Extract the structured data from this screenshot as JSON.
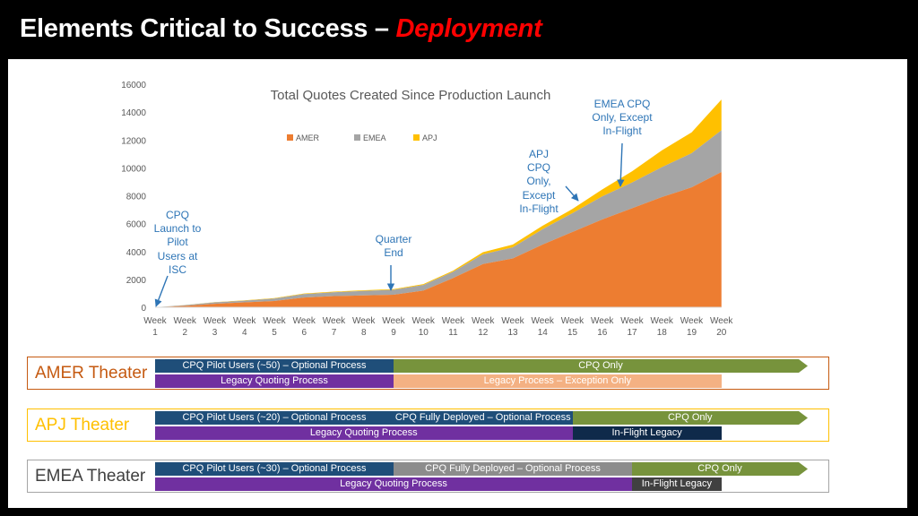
{
  "slide": {
    "title_main": "Elements Critical to Success – ",
    "title_accent": "Deployment"
  },
  "colors": {
    "background": "#000000",
    "panel": "#ffffff",
    "accent_red": "#ff0000",
    "amer": "#ed7d31",
    "emea": "#a5a5a5",
    "apj": "#ffc000",
    "annotation": "#2e75b6",
    "pilot": "#1f4e79",
    "legacy": "#7030a0",
    "cpq_only": "#77933c",
    "exception": "#f4b183",
    "emea_full": "#8c8c8c",
    "inflight": "#0f2a4a"
  },
  "chart_data": {
    "type": "area",
    "stacked": true,
    "title": "Total Quotes Created Since Production Launch",
    "categories": [
      "Week 1",
      "Week 2",
      "Week 3",
      "Week 4",
      "Week 5",
      "Week 6",
      "Week 7",
      "Week 8",
      "Week 9",
      "Week 10",
      "Week 11",
      "Week 12",
      "Week 13",
      "Week 14",
      "Week 15",
      "Week 16",
      "Week 17",
      "Week 18",
      "Week 19",
      "Week 20"
    ],
    "ylim": [
      0,
      16000
    ],
    "yticks": [
      "0",
      "2000",
      "4000",
      "6000",
      "8000",
      "10000",
      "12000",
      "14000",
      "16000"
    ],
    "legend": [
      "AMER",
      "EMEA",
      "APJ"
    ],
    "legend_position": "top",
    "grid": false,
    "series": [
      {
        "name": "AMER",
        "color": "#ed7d31",
        "values": [
          0,
          100,
          250,
          350,
          450,
          700,
          800,
          850,
          900,
          1200,
          2100,
          3100,
          3500,
          4500,
          5400,
          6300,
          7100,
          7900,
          8600,
          9700
        ]
      },
      {
        "name": "EMEA",
        "color": "#a5a5a5",
        "values": [
          0,
          50,
          100,
          120,
          180,
          250,
          280,
          320,
          350,
          400,
          450,
          700,
          800,
          1100,
          1350,
          1650,
          1850,
          2150,
          2450,
          3000
        ]
      },
      {
        "name": "APJ",
        "color": "#ffc000",
        "values": [
          0,
          10,
          20,
          25,
          30,
          40,
          45,
          50,
          50,
          60,
          80,
          150,
          200,
          250,
          300,
          500,
          800,
          1200,
          1500,
          2200
        ]
      }
    ],
    "annotations": [
      {
        "text": "CPQ\nLaunch to\nPilot\nUsers  at\nISC",
        "at_week": 1
      },
      {
        "text": "Quarter\nEnd",
        "at_week": 9
      },
      {
        "text": "APJ\nCPQ\nOnly,\nExcept\nIn-Flight",
        "at_week": 15
      },
      {
        "text": "EMEA CPQ\nOnly, Except\nIn-Flight",
        "at_week": 17
      }
    ]
  },
  "theaters": [
    {
      "name": "AMER Theater",
      "border": "#c55a11",
      "label_color": "#c55a11",
      "row1": [
        {
          "text": "CPQ Pilot Users (~50) – Optional Process",
          "color": "#1f4e79",
          "from_week": 1,
          "to_week": 9
        },
        {
          "text": "CPQ Only",
          "color": "#77933c",
          "from_week": 9,
          "to_week": 22,
          "arrow": true
        }
      ],
      "row2": [
        {
          "text": "Legacy Quoting Process",
          "color": "#7030a0",
          "from_week": 1,
          "to_week": 9
        },
        {
          "text": "Legacy Process – Exception Only",
          "color": "#f4b183",
          "from_week": 9,
          "to_week": 20
        }
      ]
    },
    {
      "name": "APJ Theater",
      "border": "#ffc000",
      "label_color": "#ffc000",
      "row1": [
        {
          "text": "CPQ Pilot Users (~20) – Optional Process",
          "color": "#1f4e79",
          "from_week": 1,
          "to_week": 9
        },
        {
          "text": "CPQ Fully Deployed – Optional Process",
          "color": "#1f4e79",
          "from_week": 9,
          "to_week": 15
        },
        {
          "text": "CPQ Only",
          "color": "#77933c",
          "from_week": 15,
          "to_week": 22,
          "arrow": true
        }
      ],
      "row2": [
        {
          "text": "Legacy Quoting Process",
          "color": "#7030a0",
          "from_week": 1,
          "to_week": 15
        },
        {
          "text": "In-Flight Legacy",
          "color": "#0f2a4a",
          "from_week": 15,
          "to_week": 20
        }
      ]
    },
    {
      "name": "EMEA Theater",
      "border": "#a5a5a5",
      "label_color": "#404040",
      "row1": [
        {
          "text": "CPQ Pilot Users (~30) – Optional Process",
          "color": "#1f4e79",
          "from_week": 1,
          "to_week": 9
        },
        {
          "text": "CPQ Fully Deployed – Optional Process",
          "color": "#8c8c8c",
          "from_week": 9,
          "to_week": 17
        },
        {
          "text": "CPQ Only",
          "color": "#77933c",
          "from_week": 17,
          "to_week": 22,
          "arrow": true
        }
      ],
      "row2": [
        {
          "text": "Legacy Quoting Process",
          "color": "#7030a0",
          "from_week": 1,
          "to_week": 17
        },
        {
          "text": "In-Flight Legacy",
          "color": "#404040",
          "from_week": 17,
          "to_week": 20
        }
      ]
    }
  ]
}
